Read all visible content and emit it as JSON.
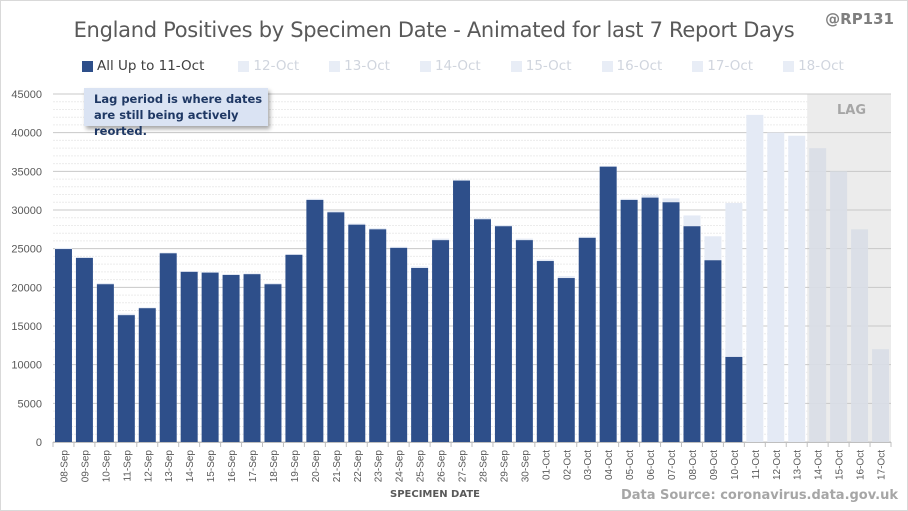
{
  "chart_data": {
    "type": "bar",
    "title": "England Positives by Specimen Date - Animated for last 7 Report Days",
    "xlabel": "SPECIMEN DATE",
    "ylabel": "",
    "ylim": [
      0,
      45000
    ],
    "yticks": [
      0,
      5000,
      10000,
      15000,
      20000,
      25000,
      30000,
      35000,
      40000,
      45000
    ],
    "grid": true,
    "legend_position": "top",
    "categories": [
      "08-Sep",
      "09-Sep",
      "10-Sep",
      "11-Sep",
      "12-Sep",
      "13-Sep",
      "14-Sep",
      "15-Sep",
      "16-Sep",
      "17-Sep",
      "18-Sep",
      "19-Sep",
      "20-Sep",
      "21-Sep",
      "22-Sep",
      "23-Sep",
      "24-Sep",
      "25-Sep",
      "26-Sep",
      "27-Sep",
      "28-Sep",
      "29-Sep",
      "30-Sep",
      "01-Oct",
      "02-Oct",
      "03-Oct",
      "04-Oct",
      "05-Oct",
      "06-Oct",
      "07-Oct",
      "08-Oct",
      "09-Oct",
      "10-Oct",
      "11-Oct",
      "12-Oct",
      "13-Oct",
      "14-Oct",
      "15-Oct",
      "16-Oct",
      "17-Oct"
    ],
    "series": [
      {
        "name": "All Up to 11-Oct",
        "color": "#2e4f8a",
        "values": [
          24950,
          23800,
          20400,
          16400,
          17300,
          24400,
          22000,
          21900,
          21600,
          21700,
          20400,
          24200,
          31300,
          29700,
          28100,
          27500,
          25100,
          22500,
          26100,
          33800,
          28800,
          27900,
          26100,
          23400,
          21200,
          26400,
          35600,
          31300,
          31600,
          31000,
          27900,
          23500,
          11000,
          null,
          null,
          null,
          null,
          null,
          null,
          null
        ]
      },
      {
        "name": "18-Oct (latest report, ghosted)",
        "color": "#e4eaf5",
        "values": [
          25100,
          23900,
          20550,
          16600,
          17400,
          24500,
          22100,
          22000,
          21700,
          21800,
          20550,
          24300,
          31450,
          29850,
          28250,
          27650,
          25250,
          22700,
          26300,
          33900,
          28950,
          28050,
          26300,
          23600,
          21450,
          26550,
          35700,
          31450,
          31900,
          31500,
          29300,
          26600,
          30900,
          42300,
          40000,
          39600,
          38000,
          35000,
          27500,
          12000
        ]
      }
    ],
    "legend": [
      {
        "label": "All Up to 11-Oct",
        "color": "#2e4f8a"
      },
      {
        "label": "12-Oct",
        "color": "#e8edf6"
      },
      {
        "label": "13-Oct",
        "color": "#e8edf6"
      },
      {
        "label": "14-Oct",
        "color": "#e8edf6"
      },
      {
        "label": "15-Oct",
        "color": "#e8edf6"
      },
      {
        "label": "16-Oct",
        "color": "#e8edf6"
      },
      {
        "label": "17-Oct",
        "color": "#e8edf6"
      },
      {
        "label": "18-Oct",
        "color": "#e8edf6"
      }
    ],
    "lag_region": {
      "label": "LAG",
      "from": "14-Oct",
      "to": "17-Oct",
      "color": "#ececec"
    },
    "annotation": "Lag period is where dates are still being actively  reorted."
  },
  "header": {
    "title": "England Positives by Specimen Date - Animated for last 7 Report Days",
    "handle": "@RP131"
  },
  "footer": {
    "source": "Data Source: coronavirus.data.gov.uk"
  }
}
